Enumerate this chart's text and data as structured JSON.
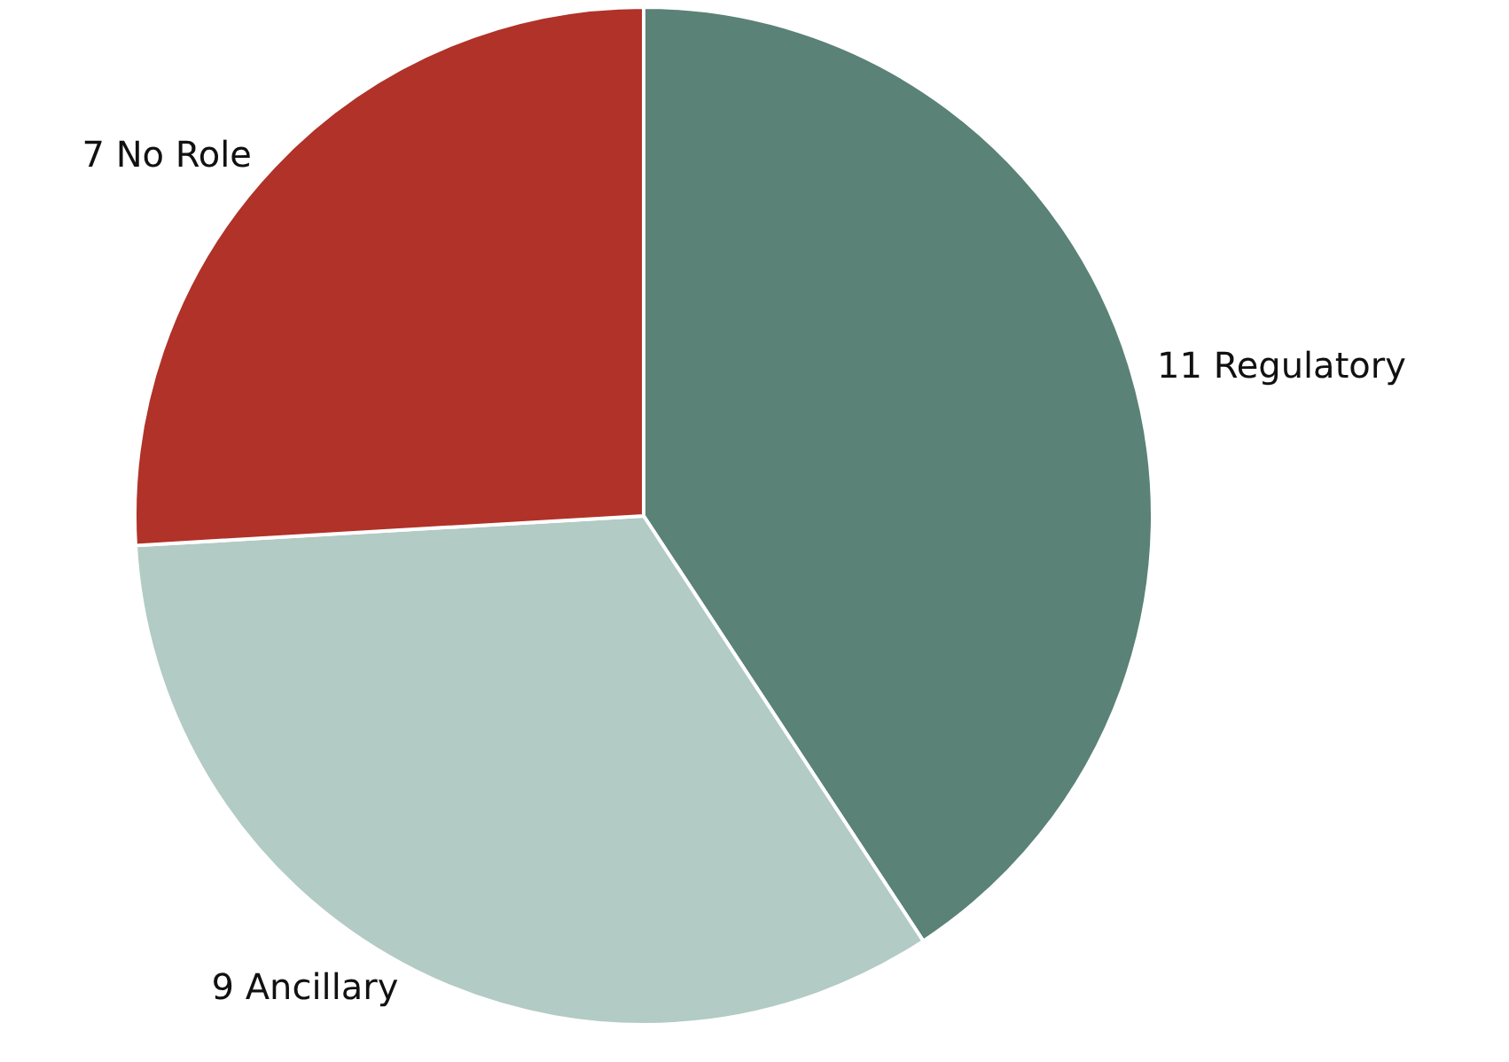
{
  "chart_data": {
    "type": "pie",
    "categories": [
      "11 Regulatory",
      "9 Ancillary",
      "7 No Role"
    ],
    "values": [
      11,
      9,
      7
    ],
    "colors": [
      "#5a8276",
      "#b2cbc4",
      "#b03228"
    ],
    "legend": false
  }
}
